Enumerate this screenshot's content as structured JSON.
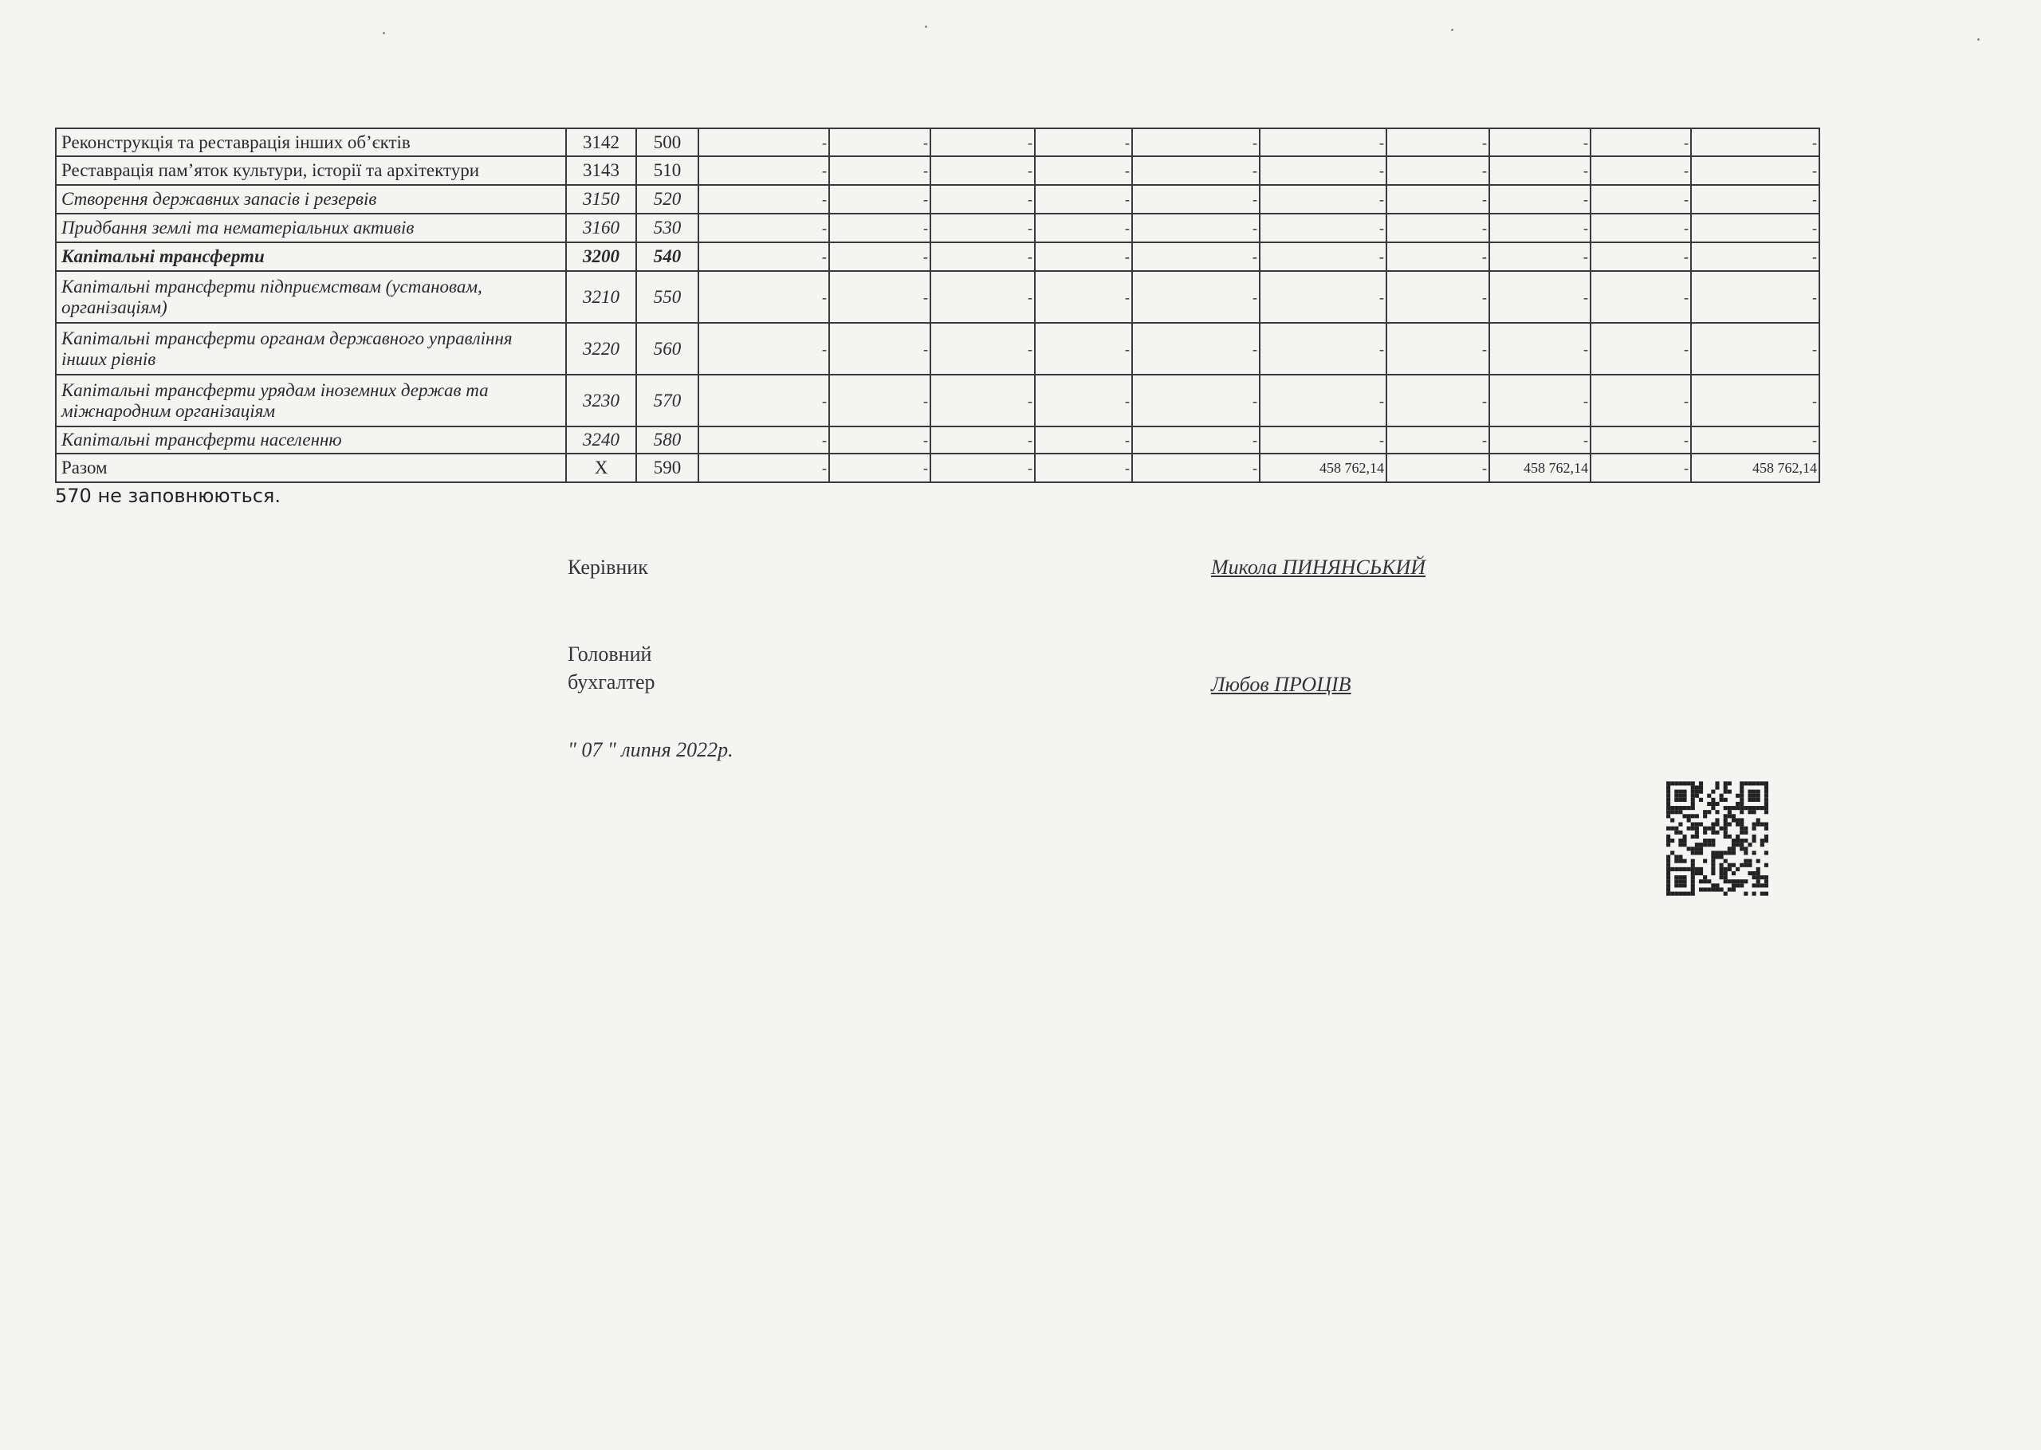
{
  "table": {
    "rows": [
      {
        "name": "Реконструкція та реставрація інших об’єктів",
        "code": "3142",
        "row": "500",
        "style": "",
        "values": [
          "-",
          "-",
          "-",
          "-",
          "-",
          "-",
          "-",
          "-",
          "-",
          "-"
        ]
      },
      {
        "name": "Реставрація пам’яток культури, історії та архітектури",
        "code": "3143",
        "row": "510",
        "style": "",
        "values": [
          "-",
          "-",
          "-",
          "-",
          "-",
          "-",
          "-",
          "-",
          "-",
          "-"
        ]
      },
      {
        "name": "Створення державних запасів і резервів",
        "code": "3150",
        "row": "520",
        "style": "italic",
        "values": [
          "-",
          "-",
          "-",
          "-",
          "-",
          "-",
          "-",
          "-",
          "-",
          "-"
        ]
      },
      {
        "name": "Придбання землі  та нематеріальних активів",
        "code": "3160",
        "row": "530",
        "style": "italic",
        "values": [
          "-",
          "-",
          "-",
          "-",
          "-",
          "-",
          "-",
          "-",
          "-",
          "-"
        ]
      },
      {
        "name": "Капітальні трансферти",
        "code": "3200",
        "row": "540",
        "style": "bold-italic",
        "values": [
          "-",
          "-",
          "-",
          "-",
          "-",
          "-",
          "-",
          "-",
          "-",
          "-"
        ]
      },
      {
        "name": "Капітальні трансферти підприємствам (установам, організаціям)",
        "code": "3210",
        "row": "550",
        "style": "italic",
        "values": [
          "-",
          "-",
          "-",
          "-",
          "-",
          "-",
          "-",
          "-",
          "-",
          "-"
        ]
      },
      {
        "name": "Капітальні трансферти органам державного управління інших рівнів",
        "code": "3220",
        "row": "560",
        "style": "italic",
        "values": [
          "-",
          "-",
          "-",
          "-",
          "-",
          "-",
          "-",
          "-",
          "-",
          "-"
        ]
      },
      {
        "name": "Капітальні трансферти  урядам іноземних держав та міжнародним організаціям",
        "code": "3230",
        "row": "570",
        "style": "italic",
        "values": [
          "-",
          "-",
          "-",
          "-",
          "-",
          "-",
          "-",
          "-",
          "-",
          "-"
        ]
      },
      {
        "name": "Капітальні трансферти населенню",
        "code": "3240",
        "row": "580",
        "style": "italic",
        "values": [
          "-",
          "-",
          "-",
          "-",
          "-",
          "-",
          "-",
          "-",
          "-",
          "-"
        ]
      },
      {
        "name": "Разом",
        "code": "X",
        "row": "590",
        "style": "",
        "values": [
          "-",
          "-",
          "-",
          "-",
          "-",
          "458 762,14",
          "-",
          "458 762,14",
          "-",
          "458 762,14"
        ]
      }
    ]
  },
  "footnote": "570 не заповнюються.",
  "signatures": {
    "head_label": "Керівник",
    "head_name": "Микола ПИНЯНСЬКИЙ",
    "accountant_label_1": "Головний",
    "accountant_label_2": "бухгалтер",
    "accountant_name": "Любов ПРОЦІВ",
    "date": "\" 07 \" липня 2022р."
  },
  "qr_code": {
    "icon": "qr-code-icon"
  }
}
